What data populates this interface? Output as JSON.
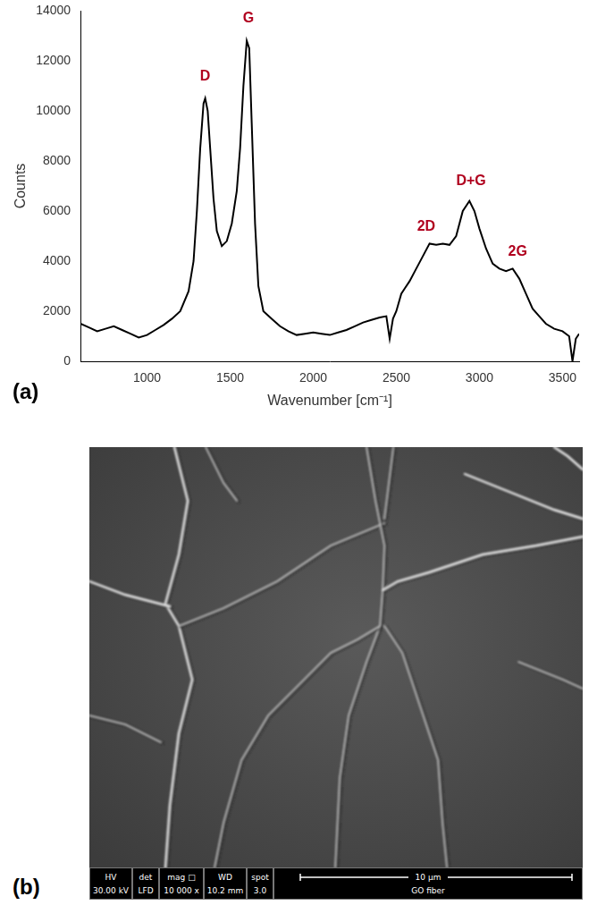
{
  "chart_data": {
    "type": "line",
    "panel_label": "(a)",
    "x_label": "Wavenumber [cm⁻¹]",
    "y_label": "Counts",
    "x": [
      600,
      650,
      700,
      750,
      800,
      850,
      900,
      950,
      1000,
      1050,
      1100,
      1150,
      1200,
      1250,
      1280,
      1300,
      1320,
      1340,
      1350,
      1365,
      1380,
      1400,
      1420,
      1450,
      1480,
      1510,
      1540,
      1560,
      1580,
      1600,
      1615,
      1630,
      1650,
      1670,
      1700,
      1750,
      1800,
      1850,
      1900,
      1950,
      2000,
      2050,
      2100,
      2150,
      2200,
      2250,
      2300,
      2350,
      2400,
      2440,
      2460,
      2480,
      2500,
      2530,
      2550,
      2580,
      2620,
      2660,
      2700,
      2740,
      2780,
      2820,
      2860,
      2900,
      2940,
      2970,
      3000,
      3040,
      3080,
      3120,
      3160,
      3200,
      3240,
      3280,
      3320,
      3360,
      3400,
      3450,
      3500,
      3540,
      3560,
      3580,
      3600
    ],
    "values": [
      1500,
      1350,
      1200,
      1300,
      1400,
      1250,
      1100,
      950,
      1050,
      1250,
      1450,
      1700,
      2000,
      2800,
      4000,
      6000,
      8500,
      10300,
      10500,
      10000,
      8500,
      6500,
      5200,
      4600,
      4800,
      5500,
      6800,
      8500,
      11000,
      12800,
      12500,
      9500,
      5500,
      3000,
      2000,
      1700,
      1400,
      1200,
      1050,
      1100,
      1150,
      1100,
      1050,
      1150,
      1250,
      1400,
      1550,
      1650,
      1750,
      1800,
      900,
      1700,
      2000,
      2700,
      2900,
      3200,
      3700,
      4200,
      4700,
      4650,
      4700,
      4650,
      5000,
      6000,
      6400,
      6000,
      5300,
      4500,
      3900,
      3700,
      3600,
      3700,
      3300,
      2700,
      2100,
      1800,
      1500,
      1300,
      1200,
      1000,
      0,
      900,
      1100
    ],
    "color": "#000000",
    "xlim": [
      600,
      3600
    ],
    "xticks": [
      1000,
      1500,
      2000,
      2500,
      3000,
      3500
    ],
    "ylim": [
      0,
      14000
    ],
    "yticks": [
      0,
      2000,
      4000,
      6000,
      8000,
      10000,
      12000,
      14000
    ],
    "grid": false,
    "annotations": [
      {
        "text": "D",
        "x": 1350,
        "y": 11100
      },
      {
        "text": "G",
        "x": 1610,
        "y": 13400
      },
      {
        "text": "2D",
        "x": 2680,
        "y": 5100
      },
      {
        "text": "D+G",
        "x": 2950,
        "y": 6900
      },
      {
        "text": "2G",
        "x": 3230,
        "y": 4100
      }
    ]
  },
  "image_panel": {
    "panel_label": "(b)",
    "info_bar": {
      "headers": [
        "HV",
        "det",
        "mag □",
        "WD",
        "spot"
      ],
      "values": [
        "30.00 kV",
        "LFD",
        "10 000 x",
        "10.2 mm",
        "3.0"
      ],
      "scale_bar": "10 μm",
      "description": "GO fiber"
    }
  }
}
